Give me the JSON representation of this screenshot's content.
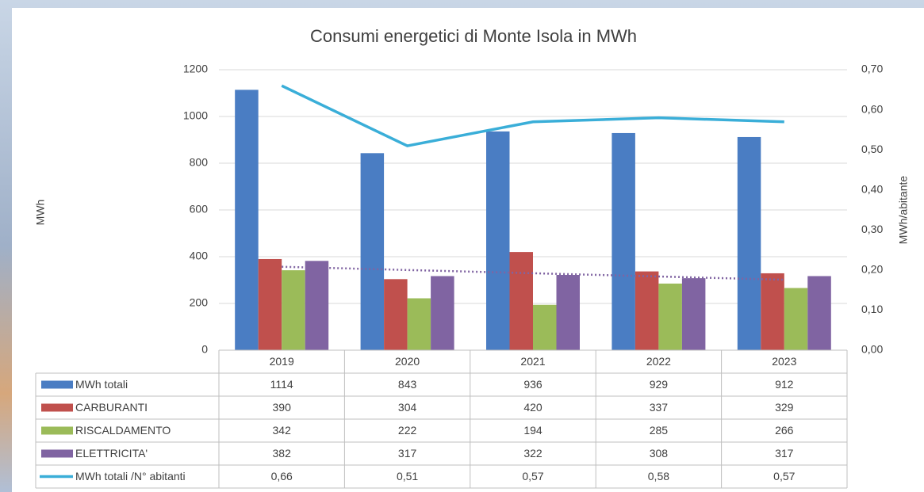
{
  "chart_data": {
    "type": "bar",
    "title": "Consumi energetici di Monte Isola in MWh",
    "y_label": "MWh",
    "y2_label": "MWh/abitante",
    "categories": [
      "2019",
      "2020",
      "2021",
      "2022",
      "2023"
    ],
    "series": [
      {
        "name": "MWh totali",
        "color": "#4a7dc3",
        "values": [
          1114,
          843,
          936,
          929,
          912
        ]
      },
      {
        "name": "CARBURANTI",
        "color": "#c0504d",
        "values": [
          390,
          304,
          420,
          337,
          329
        ]
      },
      {
        "name": "RISCALDAMENTO",
        "color": "#9bbb59",
        "values": [
          342,
          222,
          194,
          285,
          266
        ]
      },
      {
        "name": "ELETTRICITA'",
        "color": "#8064a2",
        "values": [
          382,
          317,
          322,
          308,
          317
        ],
        "trendline": true
      },
      {
        "name": "MWh totali /N° abitanti",
        "color": "#3aaed8",
        "type": "line",
        "axis": "y2",
        "values": [
          0.66,
          0.51,
          0.57,
          0.58,
          0.57
        ],
        "value_labels": [
          "0,66",
          "0,51",
          "0,57",
          "0,58",
          "0,57"
        ]
      }
    ],
    "ylim": [
      0,
      1200
    ],
    "yticks": [
      0,
      200,
      400,
      600,
      800,
      1000,
      1200
    ],
    "y2lim": [
      0,
      0.7
    ],
    "y2ticks": [
      {
        "value": 0,
        "label": "0,00"
      },
      {
        "value": 0.1,
        "label": "0,10"
      },
      {
        "value": 0.2,
        "label": "0,20"
      },
      {
        "value": 0.3,
        "label": "0,30"
      },
      {
        "value": 0.4,
        "label": "0,40"
      },
      {
        "value": 0.5,
        "label": "0,50"
      },
      {
        "value": 0.6,
        "label": "0,60"
      },
      {
        "value": 0.7,
        "label": "0,70"
      }
    ],
    "grid": true
  }
}
